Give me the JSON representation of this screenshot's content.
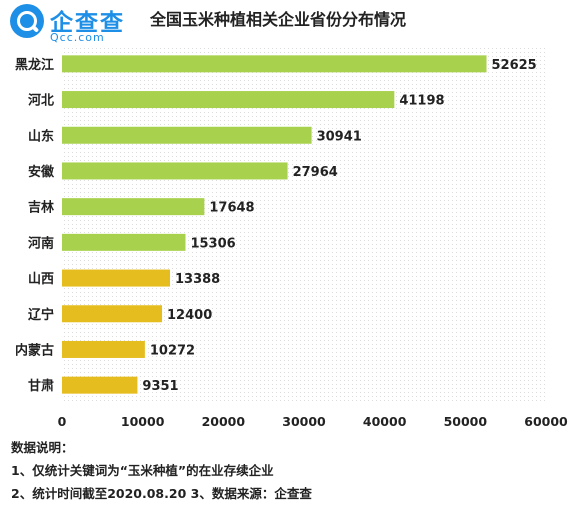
{
  "logo": {
    "name": "企查查",
    "sub": "Qcc.com"
  },
  "chart_data": {
    "type": "bar",
    "orientation": "horizontal",
    "title": "全国玉米种植相关企业省份分布情况",
    "categories": [
      "黑龙江",
      "河北",
      "山东",
      "安徽",
      "吉林",
      "河南",
      "山西",
      "辽宁",
      "内蒙古",
      "甘肃"
    ],
    "values": [
      52625,
      41198,
      30941,
      27964,
      17648,
      15306,
      13388,
      12400,
      10272,
      9351
    ],
    "bar_colors": [
      "#a8d14e",
      "#a8d14e",
      "#a8d14e",
      "#a8d14e",
      "#a8d14e",
      "#a8d14e",
      "#e6bd1e",
      "#e6bd1e",
      "#e6bd1e",
      "#e6bd1e"
    ],
    "xlim": [
      0,
      60000
    ],
    "xticks": [
      "0",
      "10000",
      "20000",
      "30000",
      "40000",
      "50000",
      "60000"
    ],
    "xlabel": "",
    "ylabel": "",
    "grid": true,
    "legend": "none"
  },
  "notes": {
    "heading": "数据说明：",
    "line1": "1、仅统计关键词为“玉米种植”的在业存续企业",
    "line2": "2、统计时间截至2020.08.20  3、数据来源：企查查"
  }
}
